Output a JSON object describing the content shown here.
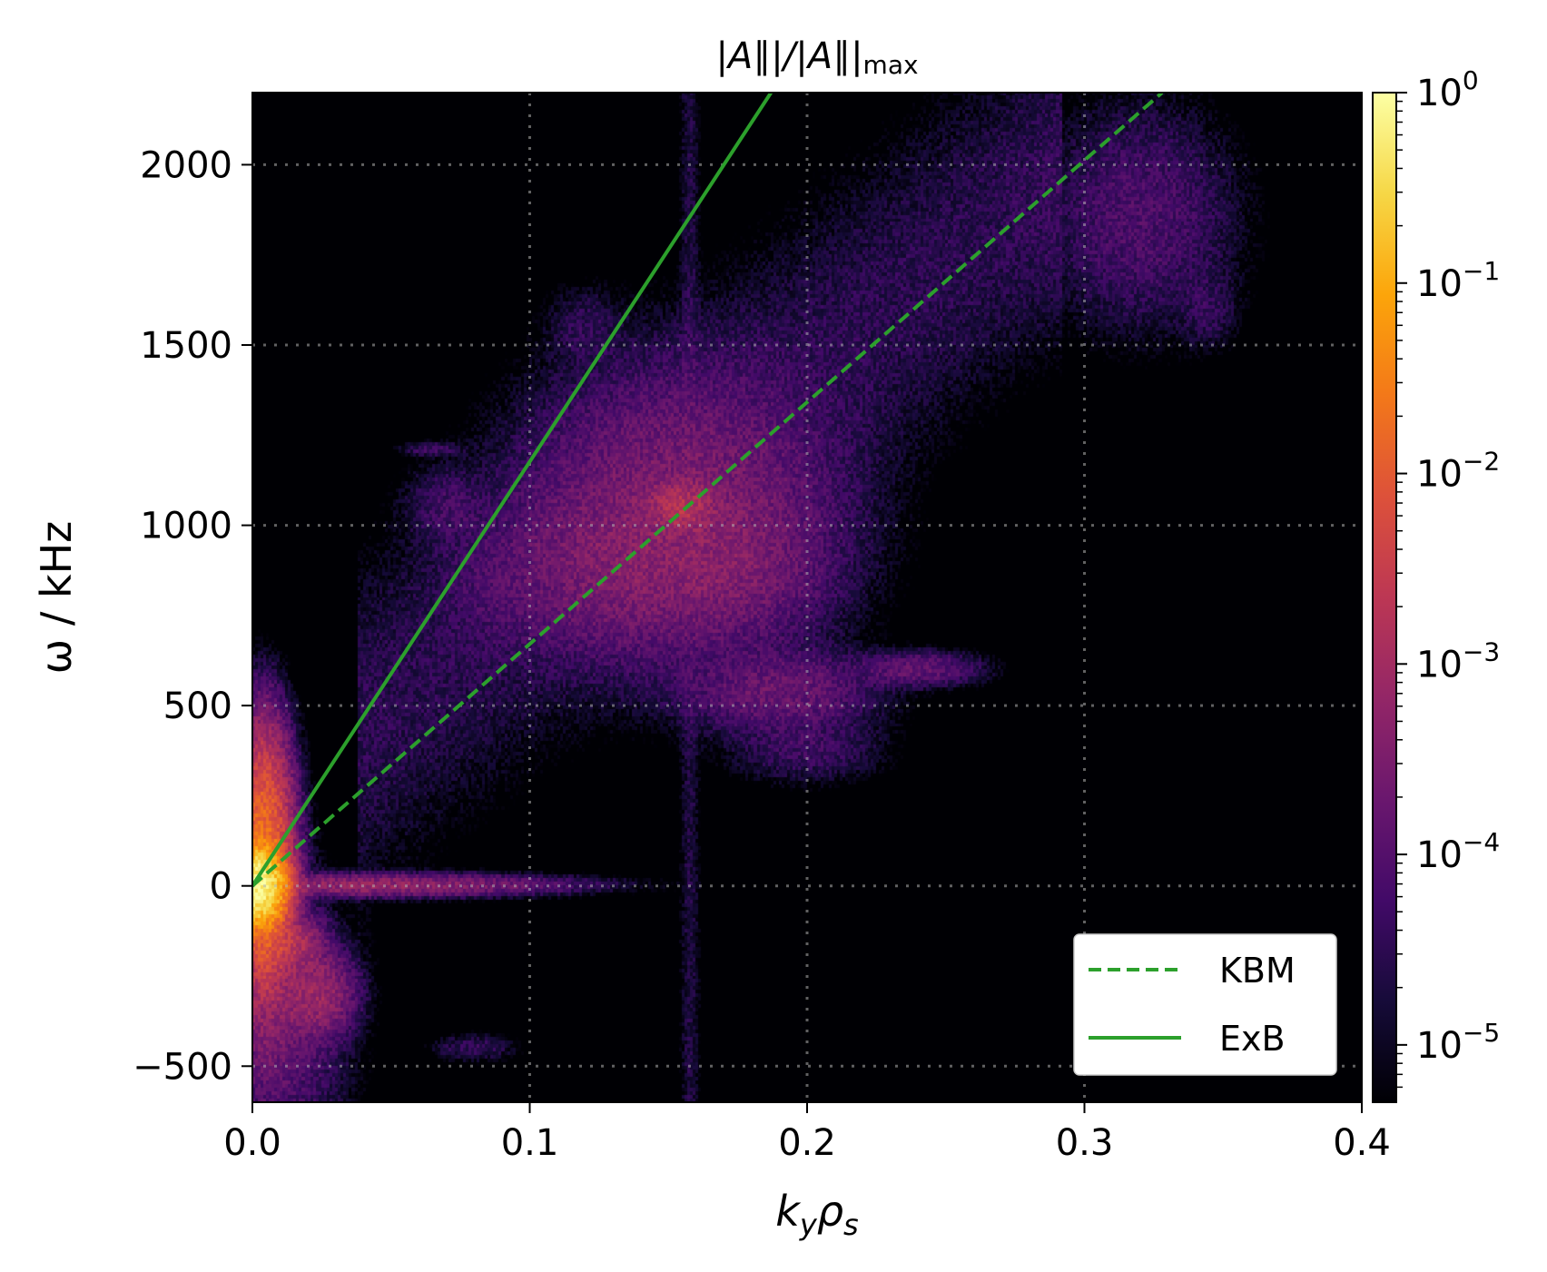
{
  "chart_data": {
    "type": "heatmap",
    "title": "|A∥|/|A∥|max",
    "title_parts": {
      "main": "|A∥|/|A∥|",
      "sub": "max"
    },
    "xlabel": "kyρs",
    "xlabel_parts": {
      "k": "k",
      "ksub": "y",
      "rho": "ρ",
      "rhosub": "s"
    },
    "ylabel": "ω / kHz",
    "xlim": [
      0.0,
      0.4
    ],
    "ylim": [
      -600,
      2200
    ],
    "x_ticks": [
      {
        "value": 0.0,
        "label": "0.0"
      },
      {
        "value": 0.1,
        "label": "0.1"
      },
      {
        "value": 0.2,
        "label": "0.2"
      },
      {
        "value": 0.3,
        "label": "0.3"
      },
      {
        "value": 0.4,
        "label": "0.4"
      }
    ],
    "y_ticks": [
      {
        "value": -500,
        "label": "−500"
      },
      {
        "value": 0,
        "label": "0"
      },
      {
        "value": 500,
        "label": "500"
      },
      {
        "value": 1000,
        "label": "1000"
      },
      {
        "value": 1500,
        "label": "1500"
      },
      {
        "value": 2000,
        "label": "2000"
      }
    ],
    "grid": true,
    "grid_style": "dotted",
    "colormap": "inferno",
    "color_scale": "log",
    "colorbar": {
      "min": 5e-06,
      "max": 1,
      "ticks": [
        {
          "value": 1,
          "base": "10",
          "exp": "0"
        },
        {
          "value": 0.1,
          "base": "10",
          "exp": "−1"
        },
        {
          "value": 0.01,
          "base": "10",
          "exp": "−2"
        },
        {
          "value": 0.001,
          "base": "10",
          "exp": "−3"
        },
        {
          "value": 0.0001,
          "base": "10",
          "exp": "−4"
        },
        {
          "value": 1e-05,
          "base": "10",
          "exp": "−5"
        }
      ]
    },
    "series": [
      {
        "name": "KBM",
        "style": "dashed",
        "color": "#2ca02c",
        "x": [
          0.0,
          0.328
        ],
        "y": [
          0,
          2200
        ]
      },
      {
        "name": "ExB",
        "style": "solid",
        "color": "#2ca02c",
        "x": [
          0.0,
          0.187
        ],
        "y": [
          0,
          2200
        ]
      }
    ],
    "legend": {
      "position": "bottom-right"
    },
    "intensity_features": [
      {
        "kind": "blob",
        "x": 0.002,
        "y": 0,
        "sx": 0.004,
        "sy": 45,
        "value": 0.8
      },
      {
        "kind": "blob",
        "x": 0.004,
        "y": 50,
        "sx": 0.004,
        "sy": 140,
        "value": 0.02
      },
      {
        "kind": "blob",
        "x": 0.004,
        "y": 150,
        "sx": 0.005,
        "sy": 150,
        "value": 0.002
      },
      {
        "kind": "blob",
        "x": 0.008,
        "y": -160,
        "sx": 0.007,
        "sy": 40,
        "value": 0.003
      },
      {
        "kind": "blob",
        "x": 0.005,
        "y": -100,
        "sx": 0.006,
        "sy": 200,
        "value": 0.0008
      },
      {
        "kind": "blob",
        "x": 0.022,
        "y": -300,
        "sx": 0.007,
        "sy": 60,
        "value": 0.0008
      },
      {
        "kind": "blob",
        "x": 0.012,
        "y": -380,
        "sx": 0.012,
        "sy": 200,
        "value": 0.0001
      },
      {
        "kind": "blob",
        "x": 0.04,
        "y": 0,
        "sx": 0.035,
        "sy": 15,
        "value": 0.0006
      },
      {
        "kind": "blob",
        "x": 0.155,
        "y": 1050,
        "sx": 0.006,
        "sy": 35,
        "value": 0.0015
      },
      {
        "kind": "blob",
        "x": 0.155,
        "y": 1030,
        "sx": 0.028,
        "sy": 200,
        "value": 0.0003
      },
      {
        "kind": "blob",
        "x": 0.13,
        "y": 880,
        "sx": 0.02,
        "sy": 120,
        "value": 0.0002
      },
      {
        "kind": "blob",
        "x": 0.17,
        "y": 880,
        "sx": 0.018,
        "sy": 100,
        "value": 0.0002
      },
      {
        "kind": "blob",
        "x": 0.19,
        "y": 540,
        "sx": 0.018,
        "sy": 60,
        "value": 0.00018
      },
      {
        "kind": "blob",
        "x": 0.24,
        "y": 600,
        "sx": 0.012,
        "sy": 25,
        "value": 0.00015
      },
      {
        "kind": "blob",
        "x": 0.2,
        "y": 380,
        "sx": 0.015,
        "sy": 50,
        "value": 5e-05
      },
      {
        "kind": "blob",
        "x": 0.32,
        "y": 1850,
        "sx": 0.018,
        "sy": 160,
        "value": 8e-05
      },
      {
        "kind": "blob",
        "x": 0.345,
        "y": 1600,
        "sx": 0.006,
        "sy": 60,
        "value": 3e-05
      },
      {
        "kind": "blob",
        "x": 0.09,
        "y": 850,
        "sx": 0.012,
        "sy": 100,
        "value": 4e-05
      },
      {
        "kind": "blob",
        "x": 0.07,
        "y": 1050,
        "sx": 0.008,
        "sy": 60,
        "value": 5e-05
      },
      {
        "kind": "blob",
        "x": 0.12,
        "y": 1550,
        "sx": 0.008,
        "sy": 60,
        "value": 3e-05
      },
      {
        "kind": "blob",
        "x": 0.065,
        "y": 1210,
        "sx": 0.006,
        "sy": 10,
        "value": 5e-05
      },
      {
        "kind": "blob",
        "x": 0.08,
        "y": -450,
        "sx": 0.008,
        "sy": 20,
        "value": 4e-05
      },
      {
        "kind": "ridge",
        "x0": 0.05,
        "y0": 500,
        "x1": 0.28,
        "y1": 1900,
        "width": 0.04,
        "value": 3e-05
      },
      {
        "kind": "vline",
        "x": 0.158,
        "width": 0.002,
        "value": 2e-05
      }
    ]
  }
}
